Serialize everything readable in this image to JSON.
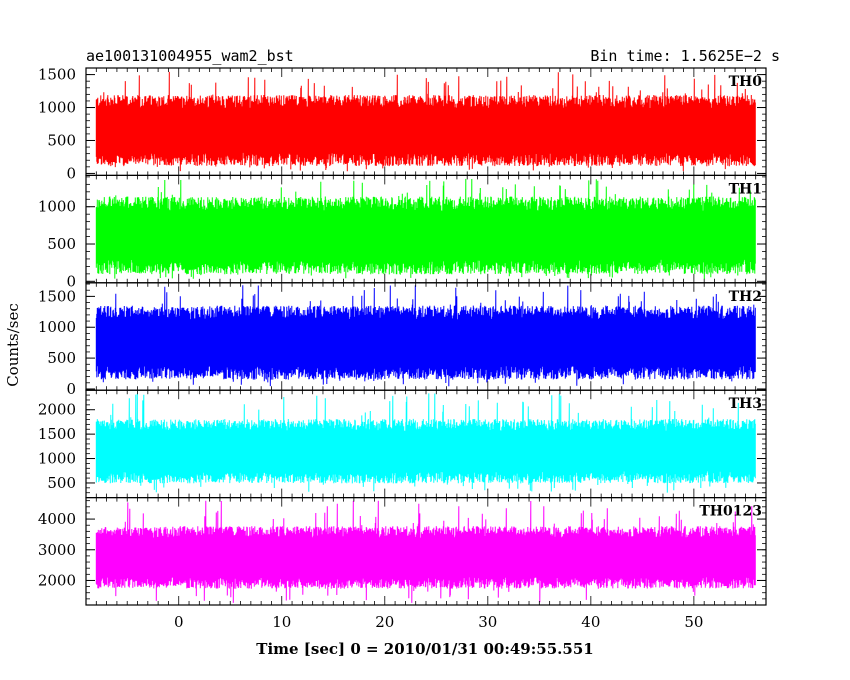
{
  "header": {
    "title": "ae100131004955_wam2_bst",
    "bin_time": "Bin time: 1.5625E−2 s"
  },
  "chart_data": {
    "type": "line",
    "xlabel": "Time [sec] 0 = 2010/01/31 00:49:55.551",
    "ylabel": "Counts/sec",
    "xlim": [
      -9,
      57
    ],
    "x_range_data": [
      -8,
      56
    ],
    "x_ticks": [
      0,
      10,
      20,
      30,
      40,
      50
    ],
    "x_tick_labels": [
      "0",
      "10",
      "20",
      "30",
      "40",
      "50"
    ],
    "panels": [
      {
        "name": "TH0",
        "color": "#ff0000",
        "ylim": [
          -30,
          1600
        ],
        "yticks": [
          0,
          500,
          1000,
          1500
        ],
        "ytick_labels": [
          "0",
          "500",
          "1000",
          "1500"
        ],
        "typical_low": 200,
        "typical_high": 1100,
        "spike_max": 1560,
        "dip_min": 30
      },
      {
        "name": "TH1",
        "color": "#00ff00",
        "ylim": [
          -20,
          1420
        ],
        "yticks": [
          0,
          500,
          1000
        ],
        "ytick_labels": [
          "0",
          "500",
          "1000"
        ],
        "typical_low": 180,
        "typical_high": 1050,
        "spike_max": 1380,
        "dip_min": 30
      },
      {
        "name": "TH2",
        "color": "#0000ff",
        "ylim": [
          -20,
          1720
        ],
        "yticks": [
          0,
          500,
          1000,
          1500
        ],
        "ytick_labels": [
          "0",
          "500",
          "1000",
          "1500"
        ],
        "typical_low": 250,
        "typical_high": 1250,
        "spike_max": 1680,
        "dip_min": 40
      },
      {
        "name": "TH3",
        "color": "#00ffff",
        "ylim": [
          200,
          2400
        ],
        "yticks": [
          500,
          1000,
          1500,
          2000
        ],
        "ytick_labels": [
          "500",
          "1000",
          "1500",
          "2000"
        ],
        "typical_low": 600,
        "typical_high": 1700,
        "spike_max": 2350,
        "dip_min": 300
      },
      {
        "name": "TH0123",
        "color": "#ff00ff",
        "ylim": [
          1200,
          4700
        ],
        "yticks": [
          2000,
          3000,
          4000
        ],
        "ytick_labels": [
          "2000",
          "3000",
          "4000"
        ],
        "typical_low": 1900,
        "typical_high": 3600,
        "spike_max": 4600,
        "dip_min": 1250
      }
    ]
  }
}
